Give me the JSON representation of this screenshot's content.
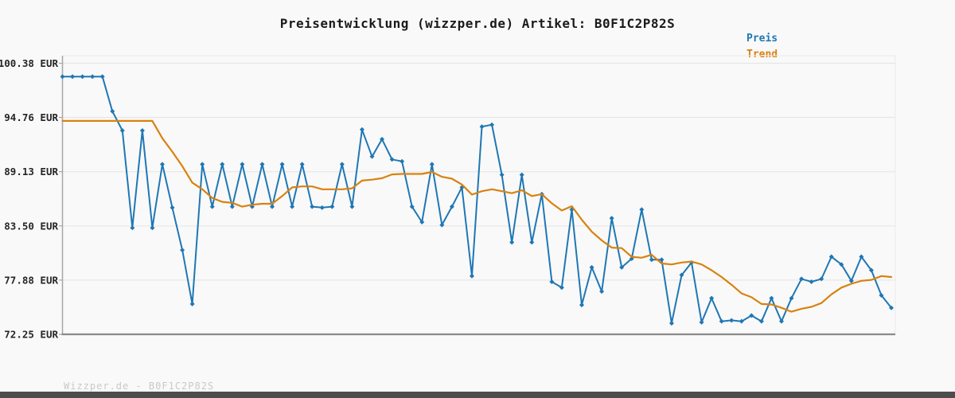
{
  "title": "Preisentwicklung (wizzper.de) Artikel: B0F1C2P82S",
  "legend": {
    "items": [
      {
        "label": "Preis",
        "color": "#1f77b4"
      },
      {
        "label": "Trend",
        "color": "#d9820f"
      }
    ],
    "position": "top-right"
  },
  "footer": "Wizzper.de - B0F1C2P82S",
  "colors": {
    "background": "#f9f9f9",
    "grid": "#e7e7e7",
    "plot_border": "#ebebeb",
    "y_axis": "#a6a6a6",
    "x_axis": "#8a8a8a",
    "tick_text": "#262626",
    "footer_text": "#c9c9c9",
    "bottom_bar": "#4d4d4d",
    "price": "#1f77b4",
    "trend": "#d9820f"
  },
  "chart_data": {
    "type": "line",
    "title": "Preisentwicklung (wizzper.de) Artikel: B0F1C2P82S",
    "grid": true,
    "legend_position": "top-right",
    "x_axis": {
      "tick_labels_visible": false,
      "num_points": 84
    },
    "y_axis": {
      "unit": "EUR",
      "min": 72.25,
      "max": 100.38,
      "tick_values": [
        100.38,
        94.76,
        89.13,
        83.5,
        77.88,
        72.25
      ],
      "tick_labels": [
        "100.38 EUR",
        "94.76 EUR",
        "89.13 EUR",
        "83.50 EUR",
        "77.88 EUR",
        "72.25 EUR"
      ]
    },
    "series": [
      {
        "name": "Preis",
        "color": "#1f77b4",
        "marker": "diamond",
        "values": [
          99.0,
          99.0,
          99.0,
          99.0,
          99.0,
          95.4,
          93.4,
          83.3,
          93.4,
          83.3,
          89.9,
          85.4,
          81.0,
          75.4,
          89.9,
          85.5,
          89.9,
          85.5,
          89.9,
          85.5,
          89.9,
          85.5,
          89.9,
          85.5,
          89.9,
          85.5,
          85.4,
          85.5,
          89.9,
          85.5,
          93.5,
          90.7,
          92.5,
          90.4,
          90.2,
          85.5,
          83.9,
          89.9,
          83.6,
          85.5,
          87.5,
          78.3,
          93.8,
          94.0,
          88.8,
          81.8,
          88.8,
          81.8,
          86.8,
          77.7,
          77.1,
          85.2,
          75.3,
          79.2,
          76.7,
          84.3,
          79.2,
          80.1,
          85.2,
          80.0,
          80.0,
          73.4,
          78.4,
          79.7,
          73.5,
          76.0,
          73.6,
          73.7,
          73.6,
          74.2,
          73.6,
          76.0,
          73.6,
          76.0,
          78.0,
          77.7,
          78.0,
          80.3,
          79.5,
          77.8,
          80.3,
          78.9,
          76.3,
          75.0
        ]
      },
      {
        "name": "Trend",
        "color": "#d9820f",
        "marker": "none",
        "values": [
          94.4,
          94.4,
          94.4,
          94.4,
          94.4,
          94.4,
          94.4,
          94.4,
          94.4,
          94.4,
          92.6,
          91.2,
          89.7,
          88.0,
          87.3,
          86.4,
          86.0,
          85.9,
          85.5,
          85.7,
          85.8,
          85.8,
          86.6,
          87.5,
          87.6,
          87.6,
          87.3,
          87.3,
          87.3,
          87.4,
          88.2,
          88.3,
          88.45,
          88.85,
          88.9,
          88.9,
          88.9,
          89.1,
          88.6,
          88.4,
          87.8,
          86.75,
          87.1,
          87.3,
          87.1,
          86.9,
          87.2,
          86.6,
          86.8,
          85.85,
          85.1,
          85.55,
          84.15,
          82.9,
          82.0,
          81.25,
          81.2,
          80.3,
          80.2,
          80.5,
          79.6,
          79.5,
          79.7,
          79.8,
          79.5,
          78.9,
          78.2,
          77.4,
          76.5,
          76.1,
          75.4,
          75.35,
          75.0,
          74.6,
          74.9,
          75.1,
          75.5,
          76.4,
          77.1,
          77.5,
          77.8,
          77.9,
          78.3,
          78.2
        ]
      }
    ]
  }
}
